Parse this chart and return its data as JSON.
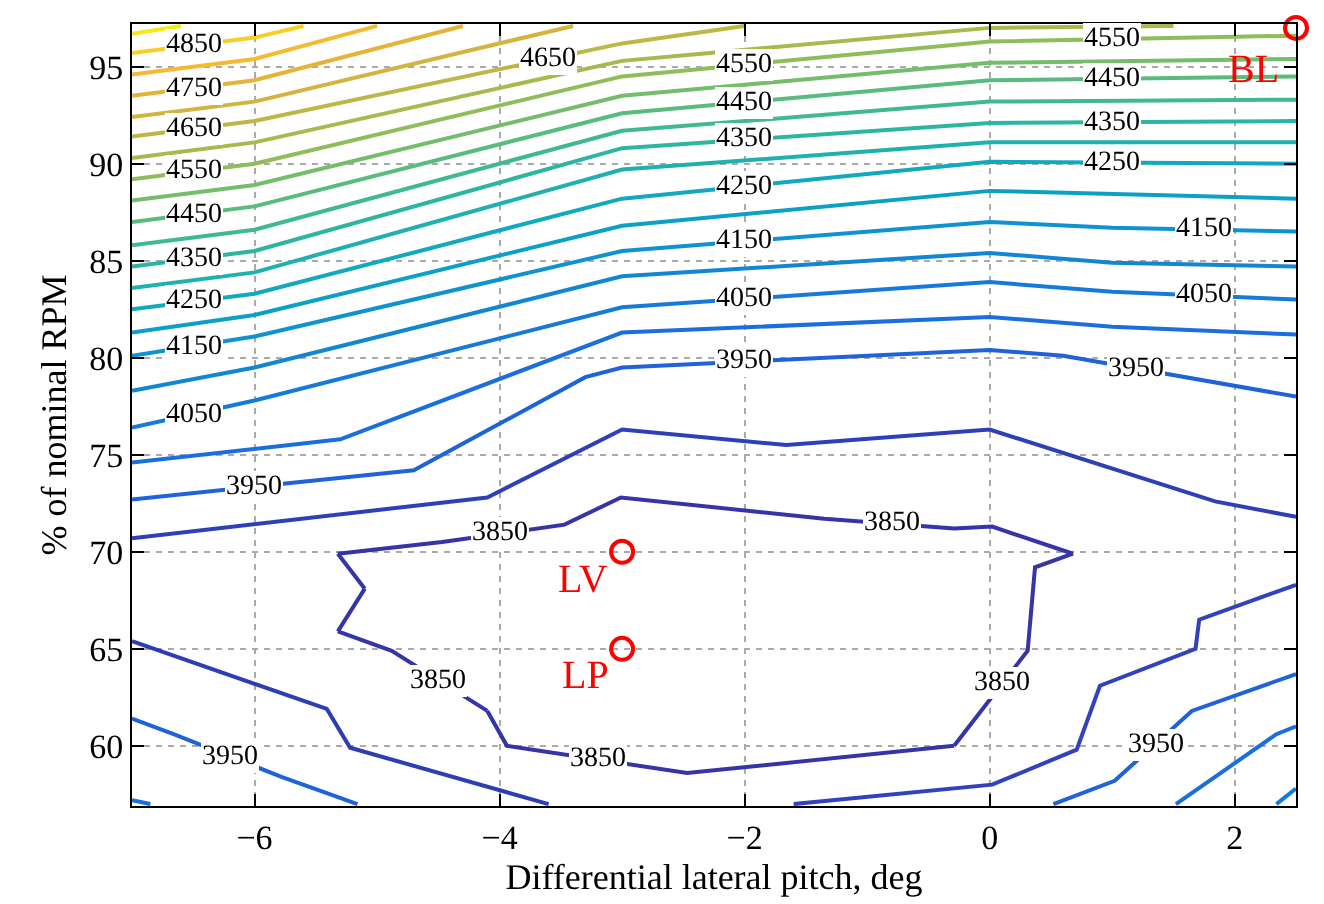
{
  "chart_data": {
    "type": "line",
    "xlabel": "Differential lateral pitch, deg",
    "ylabel": "% of nominal RPM",
    "series": [
      {
        "color": "#f5e81c",
        "x": [
          -7,
          -6.6
        ],
        "values": [
          96.7,
          97.1
        ]
      },
      {
        "color": "#f8cf25",
        "x": [
          -7,
          -6,
          -5.6
        ],
        "values": [
          95.7,
          96.5,
          97.1
        ]
      },
      {
        "color": "#f5ba2f",
        "x": [
          -7,
          -6,
          -5
        ],
        "values": [
          94.6,
          95.4,
          97.1
        ]
      },
      {
        "color": "#e6b338",
        "x": [
          -7,
          -6,
          -4.3
        ],
        "values": [
          93.5,
          94.3,
          97.1
        ]
      },
      {
        "color": "#d3b43f",
        "x": [
          -7,
          -6,
          -3.4
        ],
        "values": [
          92.4,
          93.2,
          97.1
        ]
      },
      {
        "color": "#bdb846",
        "x": [
          -7,
          -6,
          -3,
          -2
        ],
        "values": [
          91.4,
          92.2,
          96.2,
          97.1
        ]
      },
      {
        "color": "#a5bb4e",
        "x": [
          -7,
          -6,
          -3,
          0,
          1.5
        ],
        "values": [
          90.3,
          91.1,
          95.3,
          97,
          97.1
        ]
      },
      {
        "color": "#8ebd5a",
        "x": [
          -7,
          -6,
          -3,
          0,
          2.5
        ],
        "values": [
          89.2,
          90,
          94.5,
          96.3,
          96.6
        ]
      },
      {
        "color": "#74bd6a",
        "x": [
          -7,
          -6,
          -3,
          0,
          2.5
        ],
        "values": [
          88.1,
          88.9,
          93.5,
          95.2,
          95.4
        ]
      },
      {
        "color": "#58bc7c",
        "x": [
          -7,
          -6,
          -3,
          0,
          2.5
        ],
        "values": [
          87,
          87.8,
          92.6,
          94.3,
          94.5
        ]
      },
      {
        "color": "#3fba8e",
        "x": [
          -7,
          -6,
          -3,
          0,
          2.5
        ],
        "values": [
          85.8,
          86.6,
          91.7,
          93.2,
          93.3
        ]
      },
      {
        "color": "#2cb6a0",
        "x": [
          -7,
          -6,
          -3,
          0,
          2.5
        ],
        "values": [
          84.7,
          85.5,
          90.8,
          92.1,
          92.2
        ]
      },
      {
        "color": "#1fb0b0",
        "x": [
          -7,
          -6,
          -3,
          0,
          2.5
        ],
        "values": [
          83.6,
          84.4,
          89.7,
          91.1,
          91.1
        ]
      },
      {
        "color": "#10a9bf",
        "x": [
          -7,
          -6,
          -3,
          0,
          2.5
        ],
        "values": [
          82.5,
          83.3,
          88.2,
          90.1,
          90
        ]
      },
      {
        "color": "#0aa0c8",
        "x": [
          -7,
          -6,
          -3,
          0,
          2.5
        ],
        "values": [
          81.3,
          82.2,
          86.8,
          88.6,
          88.2
        ]
      },
      {
        "color": "#0e93d0",
        "x": [
          -7,
          -6,
          -3,
          0,
          1,
          2.5
        ],
        "values": [
          80.1,
          81.1,
          85.5,
          87,
          86.7,
          86.5
        ]
      },
      {
        "color": "#1186d3",
        "x": [
          -7,
          -6,
          -3,
          0,
          1,
          2.5
        ],
        "values": [
          78.3,
          79.5,
          84.2,
          85.4,
          84.9,
          84.7
        ]
      },
      {
        "color": "#157ad8",
        "x": [
          -7,
          -6,
          -3,
          0,
          1,
          2.5
        ],
        "values": [
          76.4,
          77.8,
          82.6,
          83.9,
          83.4,
          83
        ]
      },
      {
        "color": "#1a6fdc",
        "x": [
          -7,
          -5.3,
          -3,
          0,
          1,
          2.5
        ],
        "values": [
          74.6,
          75.8,
          81.3,
          82.1,
          81.6,
          81.2
        ]
      },
      {
        "color": "#1e63d8",
        "x": [
          -7,
          -4.7,
          -3.3,
          -3,
          0,
          0.6,
          2.5
        ],
        "values": [
          72.7,
          74.2,
          79,
          79.5,
          80.4,
          80.1,
          78
        ]
      },
      {
        "color": "#2f3fb8",
        "x": [
          -7,
          -4.1,
          -3,
          -1.66,
          0,
          1.84,
          2.5
        ],
        "values": [
          70.7,
          72.8,
          76.3,
          75.5,
          76.3,
          72.6,
          71.8
        ]
      },
      {
        "color": "#3535a8",
        "x": [
          -5.32,
          -4.47,
          -3.47,
          -3.01,
          -1.35,
          -0.29,
          0.02,
          0.68
        ],
        "values": [
          69.9,
          70.5,
          71.4,
          72.8,
          71.7,
          71.2,
          71.3,
          69.9
        ]
      },
      {
        "color": "#3535a8",
        "x": [
          -0.29,
          0.31,
          0.37,
          0.68
        ],
        "values": [
          60,
          64.9,
          69.2,
          69.9
        ]
      },
      {
        "color": "#3535a8",
        "x": [
          -4.1,
          -3.94,
          -2.47,
          -0.29
        ],
        "values": [
          61.8,
          60,
          58.6,
          60
        ]
      },
      {
        "color": "#3535a8",
        "x": [
          -5.32,
          -5.1
        ],
        "values": [
          69.9,
          68.1
        ]
      },
      {
        "color": "#3535a8",
        "x": [
          -5.32,
          -5.1
        ],
        "values": [
          65.9,
          68.1
        ]
      },
      {
        "color": "#3535a8",
        "x": [
          -5.32,
          -4.88,
          -4.1
        ],
        "values": [
          65.9,
          64.9,
          61.8
        ]
      },
      {
        "color": "#2e3db6",
        "x": [
          -7,
          -5.41,
          -5.22,
          -3.6
        ],
        "values": [
          65.4,
          61.9,
          59.9,
          57
        ]
      },
      {
        "color": "#3242bc",
        "x": [
          -1.6,
          0.02,
          0.71,
          0.9,
          1.68,
          1.71,
          2.5
        ],
        "values": [
          57,
          58,
          59.8,
          63.1,
          65,
          66.5,
          68.3
        ]
      },
      {
        "color": "#1e63d8",
        "x": [
          -7,
          -6.66,
          -5.78,
          -5.16
        ],
        "values": [
          61.4,
          60.6,
          58.4,
          57
        ]
      },
      {
        "color": "#1e63d8",
        "x": [
          0.52,
          1.02,
          1.65,
          2.5
        ],
        "values": [
          57,
          58.2,
          61.8,
          63.7
        ]
      },
      {
        "color": "#1a6fdc",
        "x": [
          -7,
          -6.85
        ],
        "values": [
          57.2,
          57
        ]
      },
      {
        "color": "#1a6fdc",
        "x": [
          1.52,
          2.34,
          2.5
        ],
        "values": [
          57,
          60.6,
          61
        ]
      },
      {
        "color": "#157ad8",
        "x": [
          2.34,
          2.5
        ],
        "values": [
          57,
          57.8
        ]
      },
      {
        "type": "scatter",
        "marker": "circle",
        "color": "#ff0000",
        "x": [
          -3,
          -3,
          2.5
        ],
        "values": [
          70,
          65,
          97
        ]
      }
    ],
    "annotations": [
      {
        "text": "4850",
        "x": -6.5,
        "y": 96.1
      },
      {
        "text": "4750",
        "x": -6.5,
        "y": 93.9
      },
      {
        "text": "4650",
        "x": -6.5,
        "y": 91.8
      },
      {
        "text": "4550",
        "x": -6.5,
        "y": 89.6
      },
      {
        "text": "4450",
        "x": -6.5,
        "y": 87.4
      },
      {
        "text": "4350",
        "x": -6.5,
        "y": 85.1
      },
      {
        "text": "4250",
        "x": -6.5,
        "y": 82.9
      },
      {
        "text": "4150",
        "x": -6.5,
        "y": 80.6
      },
      {
        "text": "4050",
        "x": -6.5,
        "y": 77.1
      },
      {
        "text": "3950",
        "x": -6,
        "y": 73.35
      },
      {
        "text": "3950",
        "x": -6.2,
        "y": 59.45
      },
      {
        "text": "4650",
        "x": -3.6,
        "y": 95.4
      },
      {
        "text": "4550",
        "x": -2,
        "y": 95.1
      },
      {
        "text": "4450",
        "x": -2,
        "y": 93.17
      },
      {
        "text": "4350",
        "x": -2,
        "y": 91.23
      },
      {
        "text": "4250",
        "x": -2,
        "y": 88.83
      },
      {
        "text": "4150",
        "x": -2,
        "y": 86
      },
      {
        "text": "4050",
        "x": -2,
        "y": 83.03
      },
      {
        "text": "3950",
        "x": -2,
        "y": 79.8
      },
      {
        "text": "3850",
        "x": -4,
        "y": 70.92
      },
      {
        "text": "3850",
        "x": -0.8,
        "y": 71.44
      },
      {
        "text": "3850",
        "x": -4.5,
        "y": 63.39
      },
      {
        "text": "3850",
        "x": -3.2,
        "y": 59.3
      },
      {
        "text": "3850",
        "x": 0.1,
        "y": 63.2
      },
      {
        "text": "4550",
        "x": 1,
        "y": 96.42
      },
      {
        "text": "4450",
        "x": 1,
        "y": 94.38
      },
      {
        "text": "4350",
        "x": 1,
        "y": 92.14
      },
      {
        "text": "4250",
        "x": 1,
        "y": 90.06
      },
      {
        "text": "4150",
        "x": 1.75,
        "y": 86.6
      },
      {
        "text": "4050",
        "x": 1.75,
        "y": 83.2
      },
      {
        "text": "3950",
        "x": 1.2,
        "y": 79.44
      },
      {
        "text": "3950",
        "x": 1.35,
        "y": 60.09
      },
      {
        "text": "LV",
        "x": -3,
        "y": 70
      },
      {
        "text": "LP",
        "x": -3,
        "y": 65
      },
      {
        "text": "BL",
        "x": 2.5,
        "y": 97
      }
    ],
    "xlim": [
      -7,
      2.5
    ],
    "ylim": [
      56.9,
      97.2
    ],
    "xticks": [
      -6,
      -4,
      -2,
      0,
      2
    ],
    "yticks": [
      60,
      65,
      70,
      75,
      80,
      85,
      90,
      95
    ],
    "grid": true
  }
}
